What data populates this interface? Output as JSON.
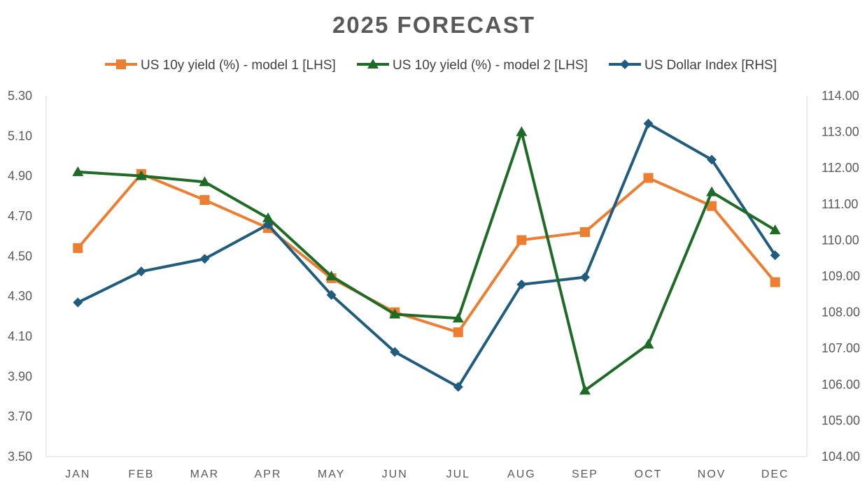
{
  "chart_data": {
    "type": "line",
    "title": "2025 FORECAST",
    "categories": [
      "JAN",
      "FEB",
      "MAR",
      "APR",
      "MAY",
      "JUN",
      "JUL",
      "AUG",
      "SEP",
      "OCT",
      "NOV",
      "DEC"
    ],
    "y_left": {
      "ylim": [
        3.5,
        5.3
      ],
      "ticks": [
        "3.50",
        "3.70",
        "3.90",
        "4.10",
        "4.30",
        "4.50",
        "4.70",
        "4.90",
        "5.10",
        "5.30"
      ]
    },
    "y_right": {
      "ylim": [
        104,
        114
      ],
      "ticks": [
        "104.00",
        "105.00",
        "106.00",
        "107.00",
        "108.00",
        "109.00",
        "110.00",
        "111.00",
        "112.00",
        "113.00",
        "114.00"
      ]
    },
    "series": [
      {
        "name": "US 10y yield (%) - model 1 [LHS]",
        "axis": "left",
        "color": "#ED7D31",
        "marker": "square",
        "values": [
          4.54,
          4.91,
          4.78,
          4.64,
          4.39,
          4.22,
          4.12,
          4.58,
          4.62,
          4.89,
          4.75,
          4.37
        ]
      },
      {
        "name": "US 10y yield (%) - model 2 [LHS]",
        "axis": "left",
        "color": "#1E6B26",
        "marker": "triangle",
        "values": [
          4.92,
          4.9,
          4.87,
          4.69,
          4.4,
          4.21,
          4.19,
          5.12,
          3.83,
          4.06,
          4.82,
          4.63
        ]
      },
      {
        "name": "US Dollar Index [RHS]",
        "axis": "right",
        "color": "#1F5C7E",
        "marker": "diamond",
        "values": [
          108.27,
          109.13,
          109.48,
          110.43,
          108.48,
          106.9,
          105.93,
          108.77,
          108.97,
          113.23,
          112.23,
          109.58
        ]
      }
    ],
    "grid": false,
    "legend_position": "top"
  }
}
